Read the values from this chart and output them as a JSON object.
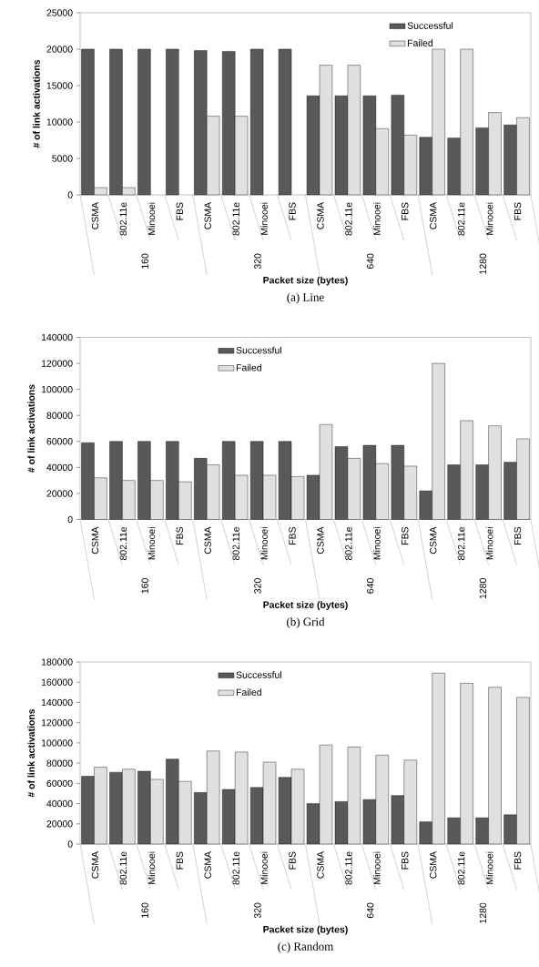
{
  "chart_data": [
    {
      "type": "bar",
      "xlabel": "Packet size (bytes)",
      "ylabel": "# of link activations",
      "categories": [
        "CSMA",
        "802.11e",
        "Minooei",
        "FBS",
        "CSMA",
        "802.11e",
        "Minooei",
        "FBS",
        "CSMA",
        "802.11e",
        "Minooei",
        "FBS",
        "CSMA",
        "802.11e",
        "Minooei",
        "FBS"
      ],
      "series": [
        {
          "name": "Successful",
          "color": "#595959",
          "values": [
            20000,
            20000,
            20000,
            20000,
            19800,
            19700,
            20000,
            20000,
            13600,
            13600,
            13600,
            13700,
            7900,
            7800,
            9200,
            9600
          ]
        },
        {
          "name": "Failed",
          "color": "#e0e0e0",
          "values": [
            1000,
            1000,
            null,
            null,
            10800,
            10800,
            null,
            null,
            17800,
            17800,
            9100,
            8200,
            20000,
            20000,
            11300,
            10600
          ]
        }
      ],
      "ylim": [
        0,
        25000
      ],
      "yticks": [
        0,
        5000,
        10000,
        15000,
        20000,
        25000
      ],
      "legend": "top right",
      "annotations": [
        "160",
        "320",
        "640",
        "1280",
        "(a) Line"
      ]
    },
    {
      "type": "bar",
      "xlabel": "Packet size (bytes)",
      "ylabel": "# of link activations",
      "categories": [
        "CSMA",
        "802.11e",
        "Minooei",
        "FBS",
        "CSMA",
        "802.11e",
        "Minooei",
        "FBS",
        "CSMA",
        "802.11e",
        "Minooei",
        "FBS",
        "CSMA",
        "802.11e",
        "Minooei",
        "FBS"
      ],
      "series": [
        {
          "name": "Successful",
          "color": "#595959",
          "values": [
            59000,
            60000,
            60000,
            60000,
            47000,
            60000,
            60000,
            60000,
            34000,
            56000,
            57000,
            57000,
            22000,
            42000,
            42000,
            44000
          ]
        },
        {
          "name": "Failed",
          "color": "#e0e0e0",
          "values": [
            32000,
            30000,
            30000,
            29000,
            42000,
            34000,
            34000,
            33000,
            73000,
            47000,
            43000,
            41000,
            120000,
            76000,
            72000,
            62000
          ]
        }
      ],
      "ylim": [
        0,
        140000
      ],
      "yticks": [
        0,
        20000,
        40000,
        60000,
        80000,
        100000,
        120000,
        140000
      ],
      "legend": "top left",
      "annotations": [
        "160",
        "320",
        "640",
        "1280",
        "(b) Grid"
      ]
    },
    {
      "type": "bar",
      "xlabel": "Packet size (bytes)",
      "ylabel": "# of link activations",
      "categories": [
        "CSMA",
        "802.11e",
        "Minooei",
        "FBS",
        "CSMA",
        "802.11e",
        "Minooei",
        "FBS",
        "CSMA",
        "802.11e",
        "Minooei",
        "FBS",
        "CSMA",
        "802.11e",
        "Minooei",
        "FBS"
      ],
      "series": [
        {
          "name": "Successful",
          "color": "#595959",
          "values": [
            67000,
            71000,
            72000,
            84000,
            51000,
            54000,
            56000,
            66000,
            40000,
            42000,
            44000,
            48000,
            22000,
            26000,
            26000,
            29000
          ]
        },
        {
          "name": "Failed",
          "color": "#e0e0e0",
          "values": [
            76000,
            74000,
            64000,
            62000,
            92000,
            91000,
            81000,
            74000,
            98000,
            96000,
            88000,
            83000,
            169000,
            159000,
            155000,
            145000
          ]
        }
      ],
      "ylim": [
        0,
        180000
      ],
      "yticks": [
        0,
        20000,
        40000,
        60000,
        80000,
        100000,
        120000,
        140000,
        160000,
        180000
      ],
      "legend": "top left",
      "annotations": [
        "160",
        "320",
        "640",
        "1280",
        "(c) Random"
      ]
    }
  ]
}
